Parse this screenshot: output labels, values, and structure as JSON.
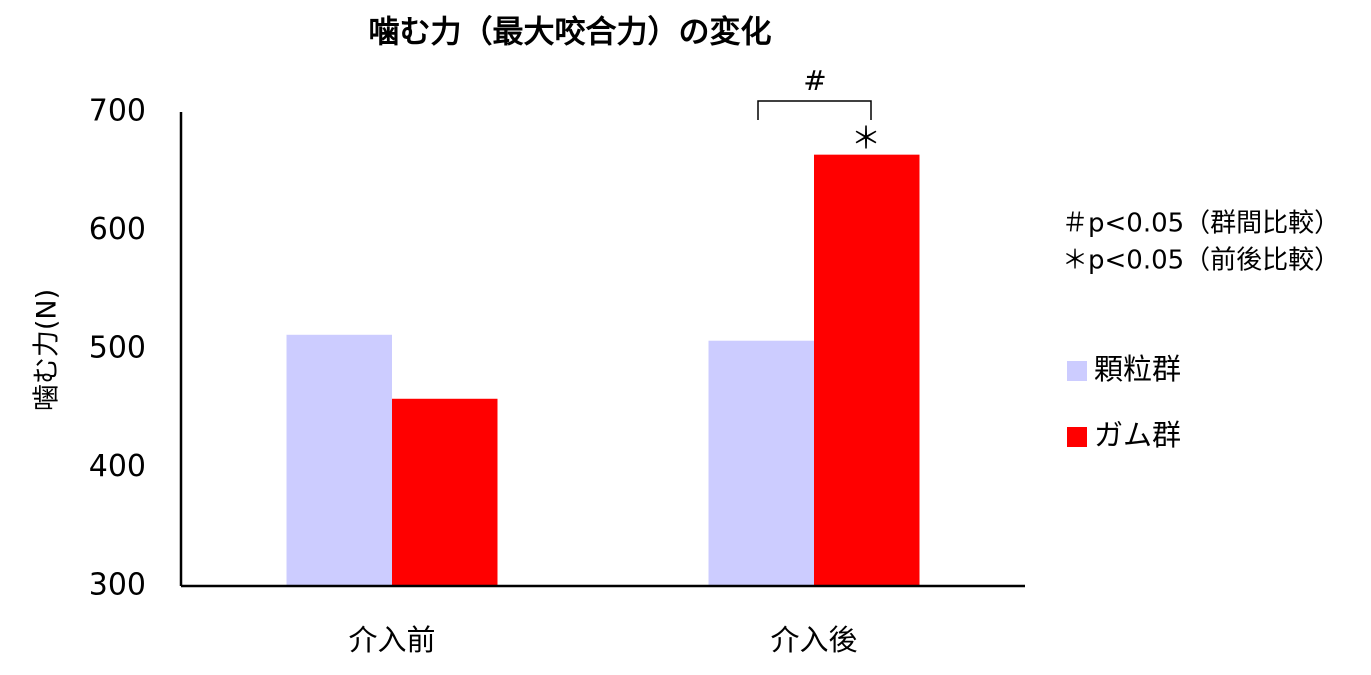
{
  "chart_data": {
    "type": "bar",
    "title": "噛む力（最大咬合力）の変化",
    "y_label": "噛む力(N)",
    "categories": [
      "介入前",
      "介入後"
    ],
    "series": [
      {
        "name": "顆粒群",
        "color": "#ccccff",
        "values": [
          512,
          507
        ]
      },
      {
        "name": "ガム群",
        "color": "#ff0000",
        "values": [
          458,
          664
        ]
      }
    ],
    "ylim": [
      300,
      700
    ],
    "yticks": [
      300,
      400,
      500,
      600,
      700
    ],
    "grid": false,
    "bracket_label": "#",
    "significance_marker": "＊",
    "notes": [
      "＃p<0.05（群間比較）",
      "＊p<0.05（前後比較）"
    ]
  }
}
